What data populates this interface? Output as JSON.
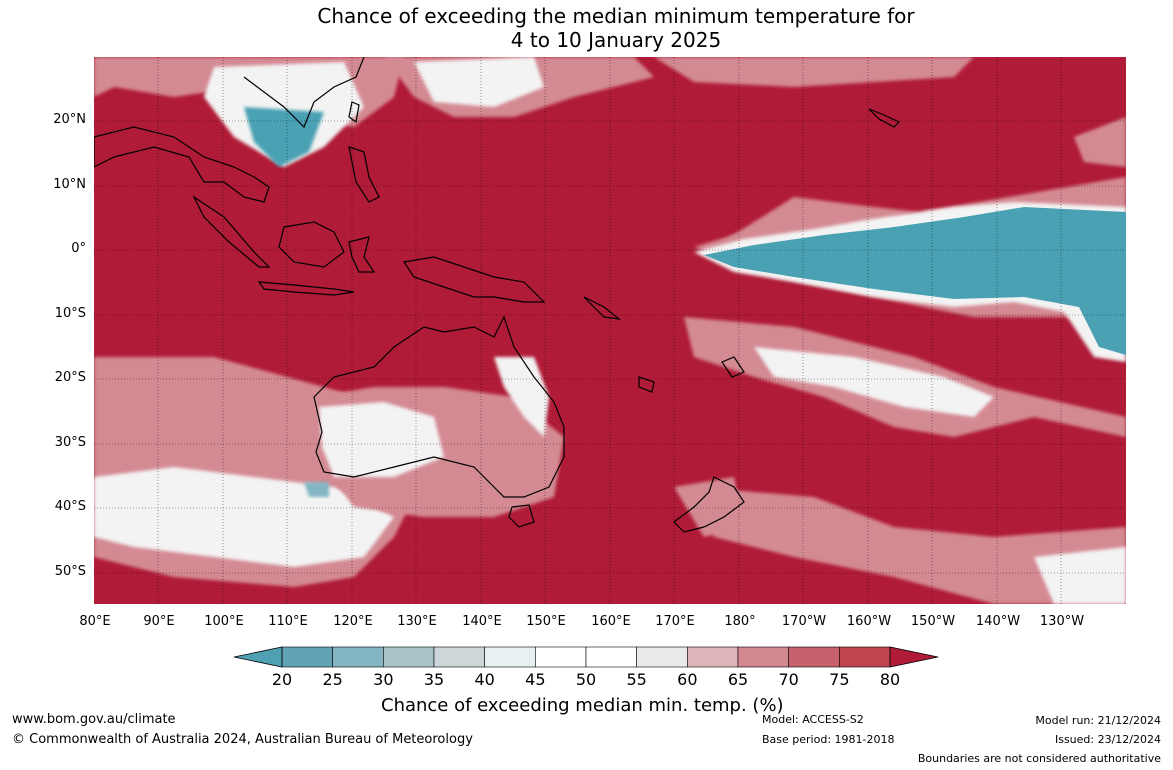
{
  "title": {
    "line1": "Chance of exceeding the median minimum temperature for",
    "line2": "4 to 10 January 2025"
  },
  "lat_labels": [
    "20°N",
    "10°N",
    "0°",
    "10°S",
    "20°S",
    "30°S",
    "40°S",
    "50°S"
  ],
  "lon_labels": [
    "80°E",
    "90°E",
    "100°E",
    "110°E",
    "120°E",
    "130°E",
    "140°E",
    "150°E",
    "160°E",
    "170°E",
    "180°",
    "170°W",
    "160°W",
    "150°W",
    "140°W",
    "130°W"
  ],
  "colorbar": {
    "ticks": [
      "20",
      "25",
      "30",
      "35",
      "40",
      "45",
      "50",
      "55",
      "60",
      "65",
      "70",
      "75",
      "80"
    ],
    "colors": [
      "#62a4b6",
      "#84b5c3",
      "#a8c4c9",
      "#cfd6d9",
      "#e9f0f2",
      "#ffffff",
      "#ffffff",
      "#eaeaeb",
      "#deb4b8",
      "#d3878f",
      "#c6616d",
      "#be4450"
    ],
    "under_color": "#4fa0b3",
    "over_color": "#b01b37",
    "label": "Chance of exceeding median min. temp. (%)"
  },
  "map_colors": {
    "high": "#b01b37",
    "mid_high": "#d48a93",
    "mid": "#f3f3f3",
    "low": "#4aa1b3",
    "coast": "#000000"
  },
  "footer": {
    "website": "www.bom.gov.au/climate",
    "copyright": "© Commonwealth of Australia 2024, Australian Bureau of Meteorology",
    "model": "Model: ACCESS-S2",
    "base_period": "Base period: 1981-2018",
    "model_run": "Model run: 21/12/2024",
    "issued": "Issued: 23/12/2024",
    "disclaimer": "Boundaries are not considered authoritative"
  }
}
